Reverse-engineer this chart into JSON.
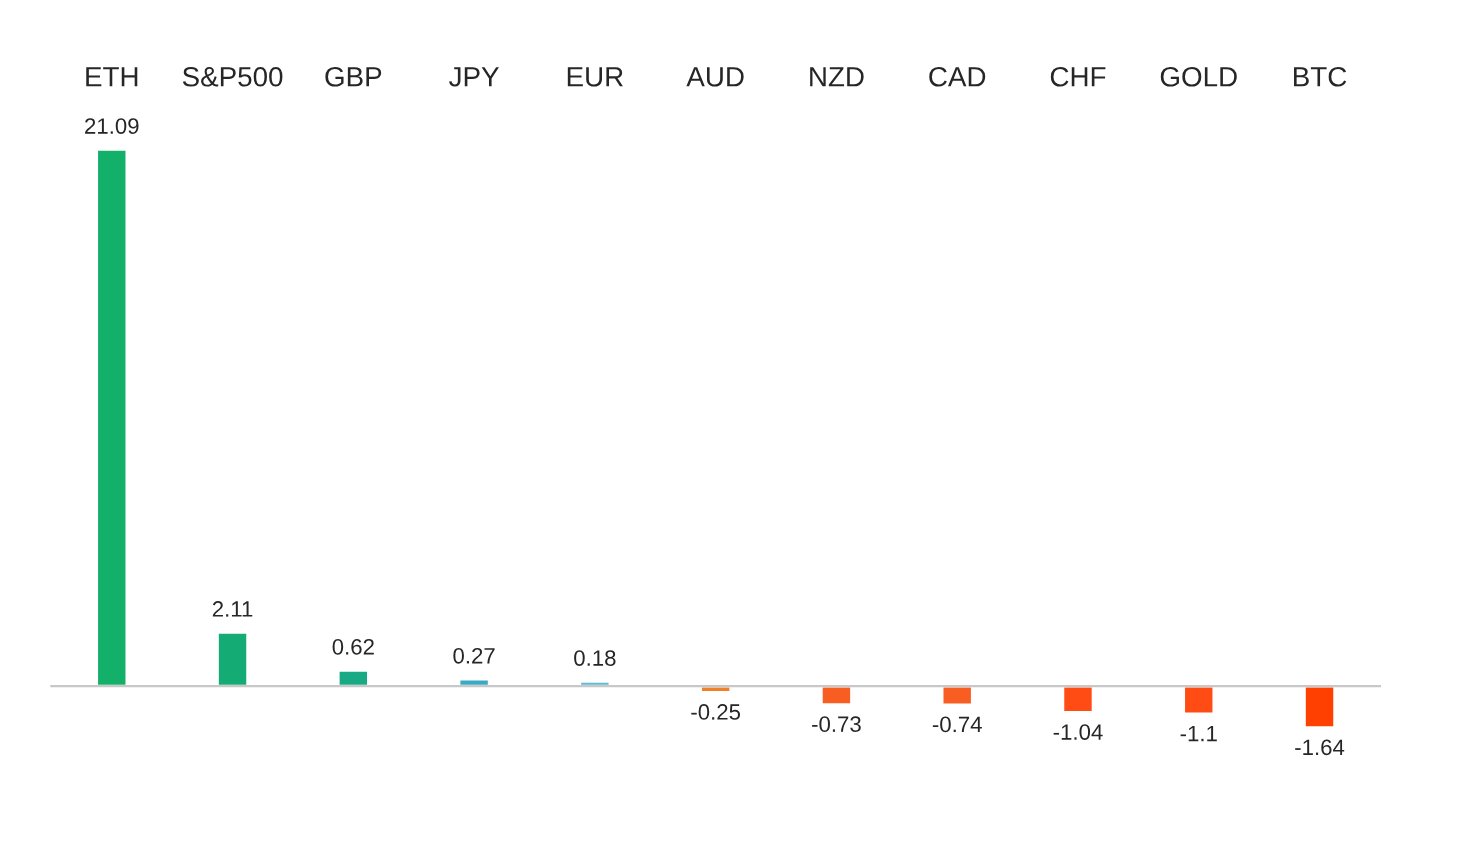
{
  "chart_data": {
    "type": "bar",
    "categories": [
      "ETH",
      "S&P500",
      "GBP",
      "JPY",
      "EUR",
      "AUD",
      "NZD",
      "CAD",
      "CHF",
      "GOLD",
      "BTC"
    ],
    "values": [
      21.09,
      2.11,
      0.62,
      0.27,
      0.18,
      -0.25,
      -0.73,
      -0.74,
      -1.04,
      -1.1,
      -1.64
    ],
    "colors": [
      "#13b06a",
      "#14ac74",
      "#18aa84",
      "#3aa9c4",
      "#5db8d2",
      "#f0802a",
      "#f85e22",
      "#f85e22",
      "#ff4c14",
      "#ff4c14",
      "#ff4000"
    ],
    "data_labels": true,
    "tick_labels": "x",
    "grid": false
  }
}
